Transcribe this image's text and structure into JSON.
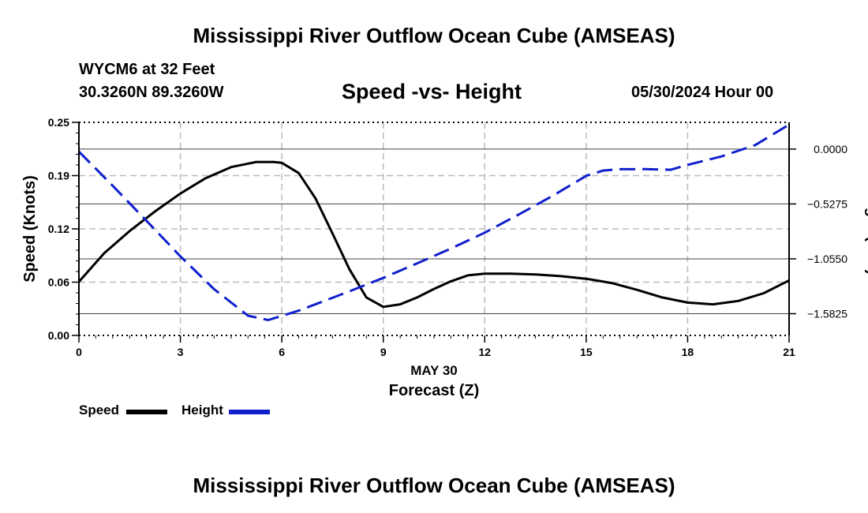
{
  "header": {
    "title": "Mississippi River Outflow Ocean Cube (AMSEAS)",
    "station": "WYCM6 at 32 Feet",
    "coords": "30.3260N  89.3260W",
    "subtitle": "Speed -vs- Height",
    "datetime": "05/30/2024 Hour 00"
  },
  "footer": {
    "title": "Mississippi River Outflow Ocean Cube (AMSEAS)"
  },
  "legend": {
    "speed_label": "Speed",
    "height_label": "Height"
  },
  "colors": {
    "speed": "#000000",
    "height": "#1020cc",
    "grid": "#bbbbbb"
  },
  "chart_data": {
    "type": "line",
    "title": "Speed -vs- Height",
    "xlabel": "Forecast (Z)",
    "xlabel_date": "MAY 30",
    "ylabel": "Speed (Knots)",
    "y2label": "Height (feet)",
    "xlim": [
      0,
      21
    ],
    "ylim": [
      0,
      0.25
    ],
    "y2lim": [
      -1.7914,
      0.2572
    ],
    "x_ticks": [
      0,
      3,
      6,
      9,
      12,
      15,
      18,
      21
    ],
    "x_tick_labels": [
      "0",
      "3",
      "6",
      "9",
      "12",
      "15",
      "18",
      "21"
    ],
    "y_ticks": [
      0,
      0.0625,
      0.125,
      0.1875,
      0.25
    ],
    "y_tick_labels": [
      "0.00",
      "0.06",
      "0.12",
      "0.19",
      "0.25"
    ],
    "y2_ticks": [
      0.0,
      -0.5275,
      -1.055,
      -1.5825
    ],
    "y2_tick_labels": [
      "0.0000",
      "−0.5275",
      "−1.0550",
      "−1.5825"
    ],
    "grid": true,
    "series": [
      {
        "name": "Speed",
        "axis": "left",
        "x": [
          0,
          0.75,
          1.5,
          2.25,
          3,
          3.75,
          4.5,
          5.25,
          5.75,
          6,
          6.5,
          7,
          7.5,
          8,
          8.5,
          9,
          9.5,
          10,
          10.5,
          11,
          11.5,
          12,
          12.75,
          13.5,
          14.25,
          15,
          15.75,
          16.5,
          17.25,
          18,
          18.75,
          19.5,
          20.25,
          21
        ],
        "values": [
          0.063,
          0.0965,
          0.1225,
          0.1455,
          0.1665,
          0.1845,
          0.1975,
          0.2035,
          0.2035,
          0.2025,
          0.1905,
          0.1605,
          0.1195,
          0.0775,
          0.0445,
          0.0335,
          0.0365,
          0.0445,
          0.0545,
          0.0635,
          0.0705,
          0.0725,
          0.0725,
          0.0715,
          0.0695,
          0.0665,
          0.0615,
          0.0535,
          0.0445,
          0.0385,
          0.0365,
          0.0405,
          0.0495,
          0.0645
        ]
      },
      {
        "name": "Height",
        "axis": "right",
        "x": [
          0,
          1,
          2,
          3,
          4,
          5,
          5.6,
          6.5,
          8,
          9,
          10,
          11,
          12,
          13,
          14,
          15,
          15.5,
          16,
          16.75,
          17.5,
          18,
          19,
          20,
          21
        ],
        "values": [
          -0.0245,
          -0.3525,
          -0.6895,
          -1.0315,
          -1.3475,
          -1.6015,
          -1.6435,
          -1.5535,
          -1.3675,
          -1.2385,
          -1.0985,
          -0.9565,
          -0.8035,
          -0.6295,
          -0.4515,
          -0.2575,
          -0.2065,
          -0.1935,
          -0.1925,
          -0.1985,
          -0.1515,
          -0.0705,
          0.0385,
          0.2355
        ]
      }
    ]
  }
}
